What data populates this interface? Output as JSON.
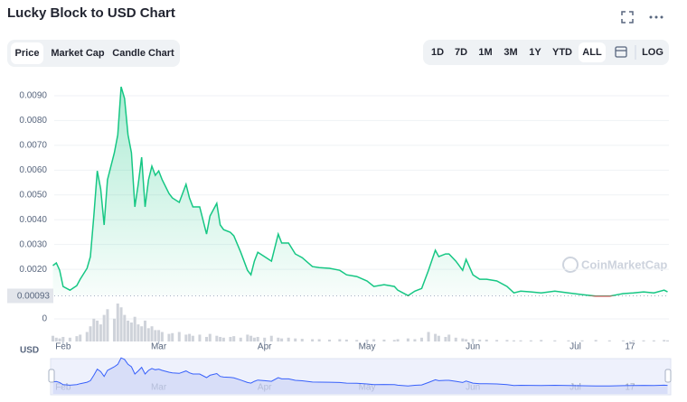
{
  "chart_data": {
    "type": "line",
    "title": "Lucky Block to USD Chart",
    "tabs": [
      "Price",
      "Market Cap",
      "Candle Chart"
    ],
    "active_tab": 0,
    "ranges": [
      "1D",
      "7D",
      "1M",
      "3M",
      "1Y",
      "YTD",
      "ALL"
    ],
    "active_range": 6,
    "log_label": "LOG",
    "currency": "USD",
    "watermark": "CoinMarketCap",
    "color": "#16c784",
    "down_color": "#ea3943",
    "grid": true,
    "reference_price": 0.00093,
    "xlim": [
      29.4,
      209.4
    ],
    "xticks": [
      {
        "value": 32,
        "label": "Feb"
      },
      {
        "value": 60,
        "label": "Mar"
      },
      {
        "value": 91,
        "label": "Apr"
      },
      {
        "value": 121,
        "label": "May"
      },
      {
        "value": 152,
        "label": "Jun"
      },
      {
        "value": 182,
        "label": "Jul"
      },
      {
        "value": 198,
        "label": "17"
      }
    ],
    "ylim": [
      -0.00091,
      0.0094
    ],
    "yticks": [
      0,
      {
        "value": 0.002,
        "label": "0.0020"
      },
      {
        "value": 0.003,
        "label": "0.0030"
      },
      {
        "value": 0.004,
        "label": "0.0040"
      },
      {
        "value": 0.005,
        "label": "0.0050"
      },
      {
        "value": 0.006,
        "label": "0.0060"
      },
      {
        "value": 0.007,
        "label": "0.0070"
      },
      {
        "value": 0.008,
        "label": "0.0080"
      },
      {
        "value": 0.009,
        "label": "0.0090"
      }
    ],
    "x": [
      29,
      30,
      31,
      32,
      34,
      36,
      37,
      39,
      40,
      41,
      42,
      43,
      44,
      45,
      47,
      48,
      49,
      50,
      51,
      52,
      53,
      54,
      55,
      56,
      57,
      58,
      59,
      60,
      61,
      63,
      64,
      66,
      68,
      69,
      70,
      72,
      74,
      75,
      77,
      78,
      79,
      81,
      82,
      84,
      86,
      87,
      88,
      89,
      91,
      93,
      95,
      96,
      98,
      100,
      102,
      105,
      107,
      110,
      113,
      115,
      118,
      121,
      123,
      126,
      129,
      130,
      133,
      135,
      137,
      139,
      141,
      142,
      144,
      145,
      147,
      149,
      150,
      152,
      154,
      156,
      159,
      162,
      164,
      166,
      169,
      172,
      176,
      180,
      184,
      188,
      192,
      196,
      199,
      202,
      205,
      208,
      209
    ],
    "values": [
      0.00215,
      0.00226,
      0.00196,
      0.00131,
      0.00116,
      0.00134,
      0.0016,
      0.00204,
      0.00251,
      0.00415,
      0.00597,
      0.00524,
      0.00379,
      0.00561,
      0.0067,
      0.00743,
      0.00936,
      0.00889,
      0.00743,
      0.0067,
      0.00452,
      0.00543,
      0.00652,
      0.00452,
      0.00561,
      0.00616,
      0.00579,
      0.00597,
      0.00561,
      0.00506,
      0.00488,
      0.0047,
      0.00543,
      0.00488,
      0.00452,
      0.00452,
      0.00342,
      0.00415,
      0.00466,
      0.00379,
      0.0036,
      0.00349,
      0.00335,
      0.00269,
      0.00196,
      0.00178,
      0.00233,
      0.00269,
      0.00251,
      0.00233,
      0.00342,
      0.00306,
      0.00306,
      0.00262,
      0.00247,
      0.00211,
      0.00207,
      0.00204,
      0.00196,
      0.00178,
      0.00171,
      0.00153,
      0.00131,
      0.00138,
      0.00131,
      0.00116,
      0.00094,
      0.00112,
      0.00123,
      0.00196,
      0.00277,
      0.00251,
      0.00262,
      0.00262,
      0.00233,
      0.00196,
      0.0024,
      0.00178,
      0.0016,
      0.0016,
      0.00153,
      0.00131,
      0.00105,
      0.00112,
      0.00109,
      0.00105,
      0.00112,
      0.00105,
      0.00098,
      0.00092,
      0.00092,
      0.00102,
      0.00105,
      0.00109,
      0.00105,
      0.00116,
      0.00109
    ],
    "volume_color": "#cfd3da",
    "y2lim": [
      0,
      100
    ],
    "volume": [
      15,
      10,
      8,
      12,
      10,
      14,
      18,
      25,
      40,
      60,
      55,
      45,
      70,
      85,
      60,
      100,
      90,
      70,
      55,
      50,
      65,
      45,
      40,
      55,
      35,
      40,
      30,
      30,
      25,
      20,
      22,
      25,
      18,
      20,
      15,
      18,
      12,
      20,
      15,
      12,
      10,
      12,
      14,
      10,
      18,
      15,
      10,
      12,
      10,
      15,
      10,
      8,
      10,
      8,
      7,
      6,
      6,
      5,
      6,
      5,
      4,
      5,
      6,
      5,
      4,
      6,
      8,
      6,
      10,
      25,
      20,
      15,
      12,
      18,
      10,
      8,
      6,
      7,
      5,
      5,
      4,
      4,
      3,
      3,
      3,
      4,
      3,
      3,
      3,
      4,
      3,
      3,
      3,
      3,
      3,
      4,
      3
    ]
  }
}
